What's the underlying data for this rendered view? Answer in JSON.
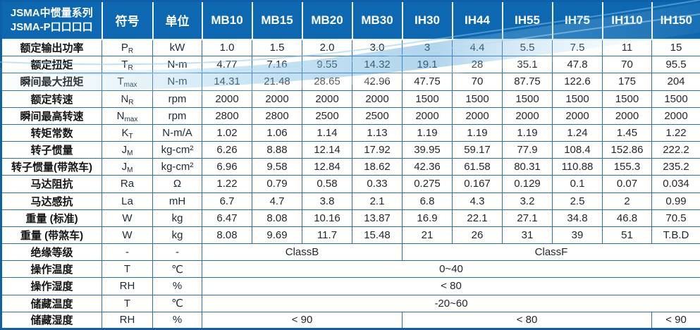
{
  "colors": {
    "header_blue": "#0d68b1",
    "border_blue": "#2a6db4",
    "outer_border_blue": "#0d60a8",
    "wave_blue_strong": "#5aa7d6",
    "wave_blue_light": "#c7e5f6",
    "text_dark": "#23272c"
  },
  "table": {
    "header": {
      "title_line1": "JSMA中惯量系列",
      "title_line2": "JSMA-P口口口口",
      "symbol_label": "符号",
      "unit_label": "单位",
      "models": [
        "MB10",
        "MB15",
        "MB20",
        "MB30",
        "IH30",
        "IH44",
        "IH55",
        "IH75",
        "IH110",
        "IH150"
      ]
    },
    "rows": [
      {
        "label": "额定输出功率",
        "sym_b": "P",
        "sym_s": "R",
        "unit": "kW",
        "values": [
          "1.0",
          "1.5",
          "2.0",
          "3.0",
          "3",
          "4.4",
          "5.5",
          "7.5",
          "11",
          "15"
        ]
      },
      {
        "label": "额定扭矩",
        "sym_b": "T",
        "sym_s": "R",
        "unit": "N-m",
        "values": [
          "4.77",
          "7.16",
          "9.55",
          "14.32",
          "19.1",
          "28",
          "35.1",
          "47.8",
          "70",
          "95.5"
        ]
      },
      {
        "label": "瞬间最大扭矩",
        "sym_b": "T",
        "sym_s": "max",
        "unit": "N-m",
        "values": [
          "14.31",
          "21.48",
          "28.65",
          "42.96",
          "47.75",
          "70",
          "87.75",
          "122.6",
          "175",
          "204"
        ]
      },
      {
        "label": "额定转速",
        "sym_b": "N",
        "sym_s": "R",
        "unit": "rpm",
        "values": [
          "2000",
          "2000",
          "2000",
          "2000",
          "1500",
          "1500",
          "1500",
          "1500",
          "1500",
          "1500"
        ]
      },
      {
        "label": "瞬间最高转速",
        "sym_b": "N",
        "sym_s": "max",
        "unit": "rpm",
        "values": [
          "2800",
          "2800",
          "2500",
          "2500",
          "2000",
          "2000",
          "2000",
          "2000",
          "2000",
          "2000"
        ]
      },
      {
        "label": "转矩常数",
        "sym_b": "K",
        "sym_s": "T",
        "unit": "N-m/A",
        "values": [
          "1.02",
          "1.06",
          "1.14",
          "1.13",
          "1.19",
          "1.19",
          "1.19",
          "1.24",
          "1.45",
          "1.22"
        ]
      },
      {
        "label": "转子惯量",
        "sym_b": "J",
        "sym_s": "M",
        "unit": "kg-cm²",
        "values": [
          "6.26",
          "8.88",
          "12.14",
          "17.92",
          "39.95",
          "59.17",
          "77.9",
          "108.4",
          "152.86",
          "222.2"
        ]
      },
      {
        "label": "转子惯量(带煞车)",
        "sym_b": "J",
        "sym_s": "M",
        "unit": "kg-cm²",
        "values": [
          "6.96",
          "9.58",
          "12.84",
          "18.62",
          "42.36",
          "61.58",
          "80.31",
          "110.88",
          "155.3",
          "235.2"
        ]
      },
      {
        "label": "马达阻抗",
        "sym_b": "Ra",
        "sym_s": "",
        "unit": "Ω",
        "values": [
          "1.22",
          "0.79",
          "0.58",
          "0.33",
          "0.275",
          "0.167",
          "0.129",
          "0.1",
          "0.07",
          "0.034"
        ]
      },
      {
        "label": "马达感抗",
        "sym_b": "La",
        "sym_s": "",
        "unit": "mH",
        "values": [
          "6.7",
          "4.7",
          "3.8",
          "2.1",
          "6.8",
          "4.3",
          "3.2",
          "2.5",
          "2",
          "0.99"
        ]
      },
      {
        "label": "重量 (标准)",
        "sym_b": "W",
        "sym_s": "",
        "unit": "kg",
        "values": [
          "6.47",
          "8.08",
          "10.16",
          "13.87",
          "16.9",
          "22.1",
          "27.1",
          "34.8",
          "46.8",
          "70.5"
        ]
      },
      {
        "label": "重量 (带煞车)",
        "sym_b": "W",
        "sym_s": "",
        "unit": "kg",
        "values": [
          "8.08",
          "9.69",
          "11.7",
          "15.48",
          "21",
          "26",
          "31",
          "39",
          "51",
          "T.B.D"
        ]
      },
      {
        "label": "绝缘等级",
        "sym_b": "-",
        "sym_s": "",
        "unit": "-",
        "values": [
          {
            "t": "ClassB",
            "span": 4
          },
          {
            "t": "ClassF",
            "span": 6
          }
        ]
      },
      {
        "label": "操作温度",
        "sym_b": "T",
        "sym_s": "",
        "unit": "℃",
        "values": [
          {
            "t": "0~40",
            "span": 10
          }
        ]
      },
      {
        "label": "操作湿度",
        "sym_b": "RH",
        "sym_s": "",
        "unit": "%",
        "values": [
          {
            "t": "< 80",
            "span": 10
          }
        ]
      },
      {
        "label": "储藏温度",
        "sym_b": "T",
        "sym_s": "",
        "unit": "℃",
        "values": [
          {
            "t": "-20~60",
            "span": 10
          }
        ]
      },
      {
        "label": "储藏湿度",
        "sym_b": "RH",
        "sym_s": "",
        "unit": "%",
        "values": [
          {
            "t": "< 90",
            "span": 4
          },
          {
            "t": "< 80",
            "span": 5
          },
          {
            "t": "< 90",
            "span": 1
          }
        ]
      }
    ]
  }
}
